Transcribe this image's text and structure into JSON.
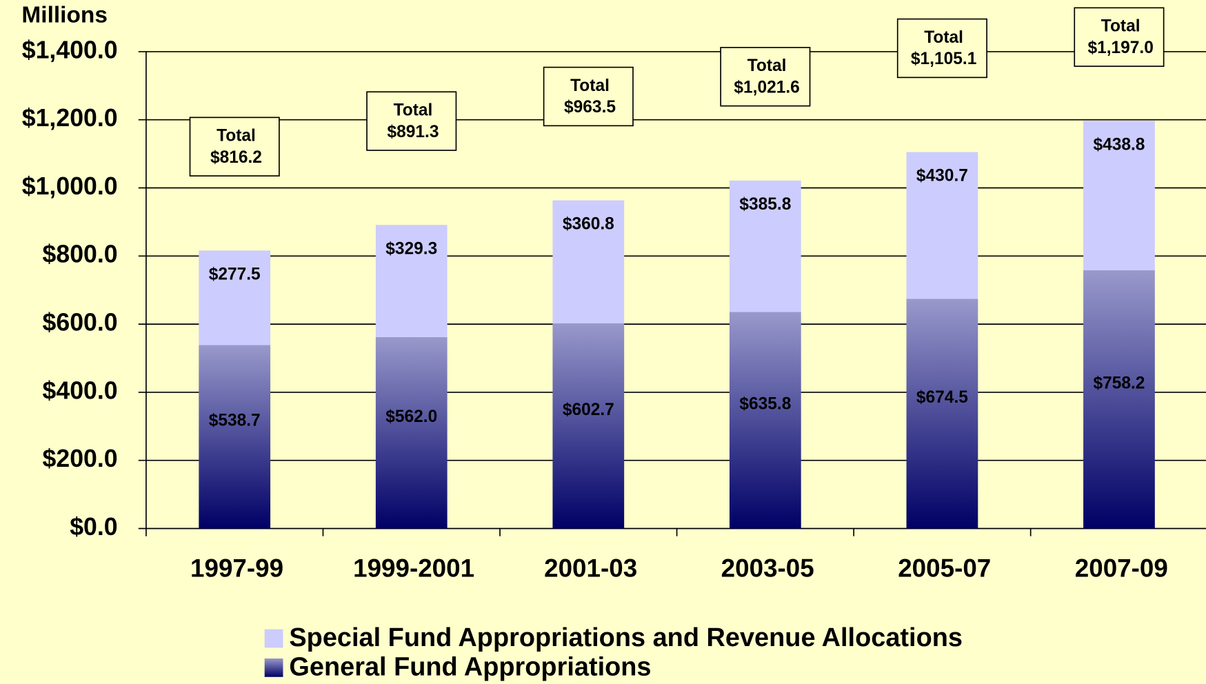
{
  "chart_data": {
    "type": "stacked_bar",
    "y_axis_label": "Millions",
    "categories": [
      "1997-99",
      "1999-2001",
      "2001-03",
      "2003-05",
      "2005-07",
      "2007-09"
    ],
    "series": [
      {
        "name": "General Fund Appropriations",
        "color": "#9999cc",
        "values": [
          538.7,
          562.0,
          602.7,
          635.8,
          674.5,
          758.2
        ],
        "value_labels": [
          "$538.7",
          "$562.0",
          "$602.7",
          "$635.8",
          "$674.5",
          "$758.2"
        ]
      },
      {
        "name": "Special Fund Appropriations and Revenue Allocations",
        "color": "#ccccff",
        "values": [
          277.5,
          329.3,
          360.8,
          385.8,
          430.7,
          438.8
        ],
        "value_labels": [
          "$277.5",
          "$329.3",
          "$360.8",
          "$385.8",
          "$430.7",
          "$438.8"
        ]
      }
    ],
    "totals": {
      "label": "Total",
      "values": [
        816.2,
        891.3,
        963.5,
        1021.6,
        1105.1,
        1197.0
      ],
      "value_labels": [
        "$816.2",
        "$891.3",
        "$963.5",
        "$1,021.6",
        "$1,105.1",
        "$1,197.0"
      ]
    },
    "ylim": [
      0,
      1400
    ],
    "yticks": [
      {
        "value": 0,
        "label": "$0.0"
      },
      {
        "value": 200,
        "label": "$200.0"
      },
      {
        "value": 400,
        "label": "$400.0"
      },
      {
        "value": 600,
        "label": "$600.0"
      },
      {
        "value": 800,
        "label": "$800.0"
      },
      {
        "value": 1000,
        "label": "$1,000.0"
      },
      {
        "value": 1200,
        "label": "$1,200.0"
      },
      {
        "value": 1400,
        "label": "$1,400.0"
      }
    ],
    "grid": true
  }
}
